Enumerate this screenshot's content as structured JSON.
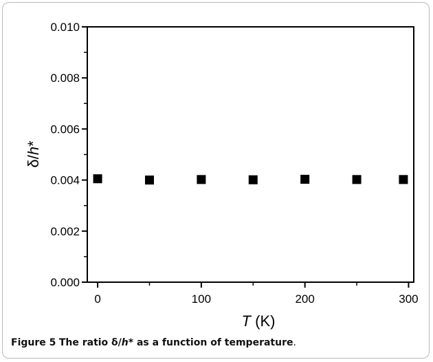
{
  "caption": {
    "label": "Figure 5",
    "text_before": "The ratio δ/",
    "text_h": "h",
    "text_after": "* as a function of temperature",
    "end": "."
  },
  "chart_data": {
    "type": "scatter",
    "title": "",
    "xlabel_var": "T",
    "xlabel_unit": " (K)",
    "ylabel_prefix": "δ/",
    "ylabel_var": "h",
    "ylabel_suffix": "*",
    "xlim": [
      -10,
      305
    ],
    "ylim": [
      0,
      0.01
    ],
    "x_ticks": [
      0,
      100,
      200,
      300
    ],
    "x_tick_labels": [
      "0",
      "100",
      "200",
      "300"
    ],
    "y_ticks": [
      0,
      0.002,
      0.004,
      0.006,
      0.008,
      0.01
    ],
    "y_tick_labels": [
      "0.000",
      "0.002",
      "0.004",
      "0.006",
      "0.008",
      "0.010"
    ],
    "marker": "square",
    "marker_color": "#000000",
    "grid": false,
    "series": [
      {
        "x": [
          0,
          50,
          100,
          150,
          200,
          250,
          295
        ],
        "y": [
          0.00405,
          0.004,
          0.00402,
          0.00401,
          0.00403,
          0.00402,
          0.00402
        ]
      }
    ]
  }
}
